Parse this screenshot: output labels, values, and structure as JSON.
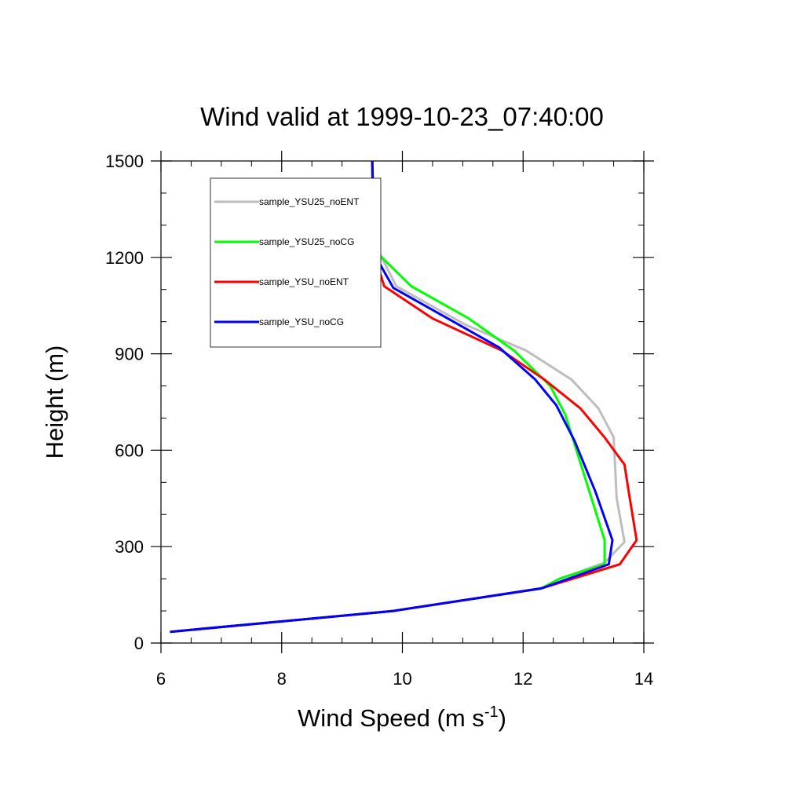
{
  "chart_data": {
    "type": "line",
    "title": "Wind valid at 1999-10-23_07:40:00",
    "xlabel": "Wind Speed (m s",
    "xlabel_sup": "-1",
    "xlabel_tail": ")",
    "ylabel": "Height (m)",
    "xlim": [
      6,
      14
    ],
    "ylim": [
      0,
      1500
    ],
    "xticks": [
      6,
      8,
      10,
      12,
      14
    ],
    "yticks": [
      0,
      300,
      600,
      900,
      1200,
      1500
    ],
    "grid": false,
    "legend_position": "top-left",
    "series": [
      {
        "name": "sample_YSU25_noENT",
        "color": "#bebebe",
        "points": [
          [
            6.15,
            35
          ],
          [
            9.85,
            100
          ],
          [
            12.3,
            170
          ],
          [
            12.6,
            200
          ],
          [
            13.35,
            250
          ],
          [
            13.68,
            315
          ],
          [
            13.55,
            450
          ],
          [
            13.5,
            640
          ],
          [
            13.25,
            730
          ],
          [
            12.8,
            820
          ],
          [
            12.05,
            910
          ],
          [
            11.05,
            990
          ],
          [
            9.9,
            1110
          ],
          [
            9.6,
            1220
          ],
          [
            9.5,
            1320
          ],
          [
            9.5,
            1500
          ]
        ]
      },
      {
        "name": "sample_YSU25_noCG",
        "color": "#00ff00",
        "points": [
          [
            6.15,
            35
          ],
          [
            9.85,
            100
          ],
          [
            12.3,
            170
          ],
          [
            12.6,
            200
          ],
          [
            13.35,
            245
          ],
          [
            13.35,
            320
          ],
          [
            13.1,
            470
          ],
          [
            12.7,
            710
          ],
          [
            12.45,
            800
          ],
          [
            11.85,
            910
          ],
          [
            11.1,
            1010
          ],
          [
            10.15,
            1110
          ],
          [
            9.6,
            1210
          ],
          [
            9.52,
            1320
          ],
          [
            9.5,
            1500
          ]
        ]
      },
      {
        "name": "sample_YSU_noENT",
        "color": "#ff0000",
        "points": [
          [
            6.15,
            35
          ],
          [
            9.85,
            100
          ],
          [
            12.3,
            170
          ],
          [
            13.6,
            245
          ],
          [
            13.88,
            320
          ],
          [
            13.75,
            470
          ],
          [
            13.68,
            555
          ],
          [
            13.35,
            640
          ],
          [
            12.95,
            730
          ],
          [
            12.35,
            820
          ],
          [
            11.65,
            910
          ],
          [
            10.5,
            1010
          ],
          [
            9.7,
            1110
          ],
          [
            9.52,
            1215
          ],
          [
            9.5,
            1500
          ]
        ]
      },
      {
        "name": "sample_YSU_noCG",
        "color": "#0000ff",
        "points": [
          [
            6.15,
            35
          ],
          [
            9.85,
            100
          ],
          [
            12.3,
            170
          ],
          [
            12.9,
            210
          ],
          [
            13.42,
            245
          ],
          [
            13.48,
            320
          ],
          [
            13.2,
            470
          ],
          [
            12.85,
            630
          ],
          [
            12.55,
            740
          ],
          [
            12.2,
            820
          ],
          [
            11.6,
            920
          ],
          [
            10.75,
            1010
          ],
          [
            9.85,
            1105
          ],
          [
            9.55,
            1205
          ],
          [
            9.5,
            1500
          ]
        ]
      }
    ]
  }
}
